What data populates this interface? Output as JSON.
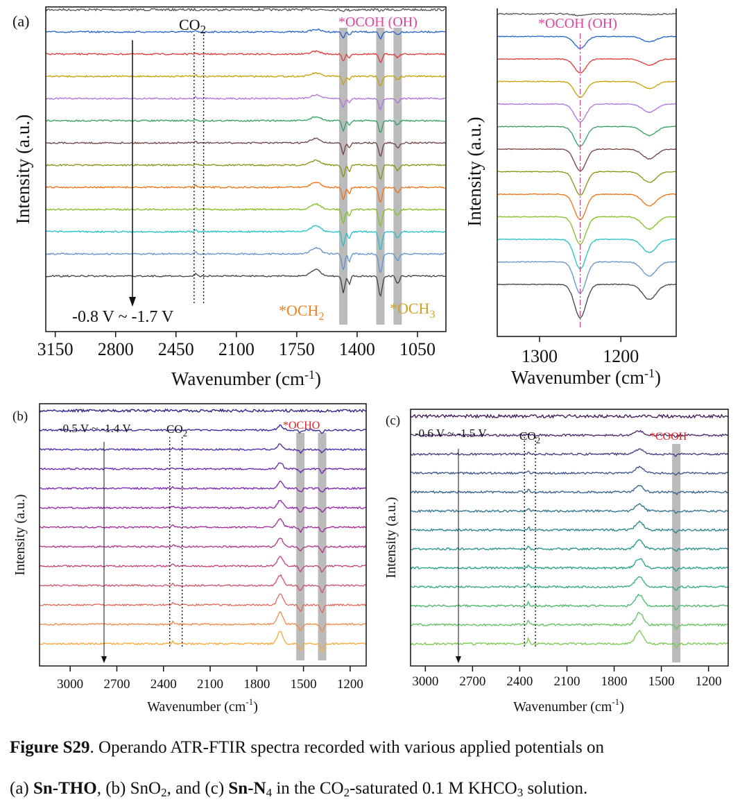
{
  "chart_data": [
    {
      "type": "line",
      "panel": "(a)",
      "xlabel": "Wavenumber (cm-1)",
      "ylabel": "Intensity (a.u.)",
      "xlim": [
        3205,
        885
      ],
      "xticks": [
        3150,
        2800,
        2450,
        2100,
        1750,
        1400,
        1050
      ],
      "potential_label": "-0.8 V ~ -1.7 V",
      "annotations": {
        "co2": "CO2",
        "ocoh": "*OCOH (OH)",
        "och2": "*OCH2",
        "och3": "*OCH3"
      },
      "co2_lines": [
        2345,
        2290
      ],
      "bands": [
        1480,
        1265,
        1165
      ],
      "colors": [
        "#555555",
        "#2060d0",
        "#e03838",
        "#c8a000",
        "#b070e0",
        "#30a060",
        "#704040",
        "#8a9010",
        "#f07010",
        "#80c020",
        "#20c0c8",
        "#6090d0",
        "#404040"
      ],
      "peaks": [
        [
          1480,
          1.0,
          12
        ],
        [
          1445,
          0.5,
          10
        ],
        [
          1265,
          1.2,
          14
        ],
        [
          1165,
          0.45,
          14
        ],
        [
          1640,
          -0.4,
          40
        ],
        [
          2335,
          -0.15,
          8
        ]
      ]
    },
    {
      "type": "line",
      "panel": "(a) inset",
      "xlabel": "Wavenumber (cm-1)",
      "ylabel": "Intensity (a.u.)",
      "xlim": [
        1352,
        1132
      ],
      "xticks": [
        1300,
        1200
      ],
      "annotation": "*OCOH (OH)",
      "marker_line": 1250,
      "colors": [
        "#555555",
        "#2060d0",
        "#e03838",
        "#c8a000",
        "#b070e0",
        "#30a060",
        "#704040",
        "#8a9010",
        "#f07010",
        "#80c020",
        "#20c0c8",
        "#6090d0",
        "#404040"
      ],
      "peaks": [
        [
          1250,
          1.0,
          10
        ],
        [
          1165,
          0.45,
          12
        ]
      ]
    },
    {
      "type": "line",
      "panel": "(b)",
      "xlabel": "Wavenumber (cm-1)",
      "ylabel": "Intensity (a.u.)",
      "xlim": [
        3197,
        1097
      ],
      "xticks": [
        3000,
        2700,
        2400,
        2100,
        1800,
        1500,
        1200
      ],
      "potential_label": "-0.5 V ~ -1.4 V",
      "annotations": {
        "co2": "CO2",
        "ocho": "*OCHO"
      },
      "co2_lines": [
        2360,
        2280
      ],
      "bands": [
        1520,
        1380
      ],
      "colors": [
        "#1a1a80",
        "#3020a0",
        "#4a20a8",
        "#6420b0",
        "#7a20b0",
        "#9020a8",
        "#a02898",
        "#b03088",
        "#c04078",
        "#d05068",
        "#e06858",
        "#f08848",
        "#f8a838"
      ],
      "peaks": [
        [
          1650,
          -0.9,
          25
        ],
        [
          1520,
          0.5,
          14
        ],
        [
          1380,
          0.6,
          14
        ],
        [
          2340,
          -0.2,
          8
        ]
      ]
    },
    {
      "type": "line",
      "panel": "(c)",
      "xlabel": "Wavenumber (cm-1)",
      "ylabel": "Intensity (a.u.)",
      "xlim": [
        3094,
        1075
      ],
      "xticks": [
        3000,
        2700,
        2400,
        2100,
        1800,
        1500,
        1200
      ],
      "potential_label": "-0.6 V ~ -1.5 V",
      "annotations": {
        "co2": "CO2",
        "cooh": "*COOH"
      },
      "co2_lines": [
        2370,
        2300
      ],
      "bands": [
        1405
      ],
      "colors": [
        "#3a1050",
        "#44206a",
        "#3c3c80",
        "#36508a",
        "#30608c",
        "#2a708c",
        "#24808a",
        "#209088",
        "#20a080",
        "#30ac74",
        "#48b868",
        "#60c05c",
        "#78c850"
      ],
      "peaks": [
        [
          1640,
          -1.0,
          35
        ],
        [
          2345,
          -0.4,
          8
        ],
        [
          1405,
          0.35,
          10
        ]
      ]
    }
  ],
  "caption": {
    "fig": "Figure S29",
    "line1": ". Operando ATR-FTIR spectra recorded with various applied potentials on",
    "a": "(a) ",
    "sn_tho": "Sn-THO",
    "b": ", (b) SnO",
    "b_sub": "2",
    "c": ", and (c) ",
    "sn_n4": "Sn-N",
    "n4_sub": "4",
    "rest": " in the CO",
    "rest_sub": "2",
    "rest2": "-saturated 0.1 M KHCO",
    "rest2_sub": "3",
    "rest3": " solution."
  }
}
